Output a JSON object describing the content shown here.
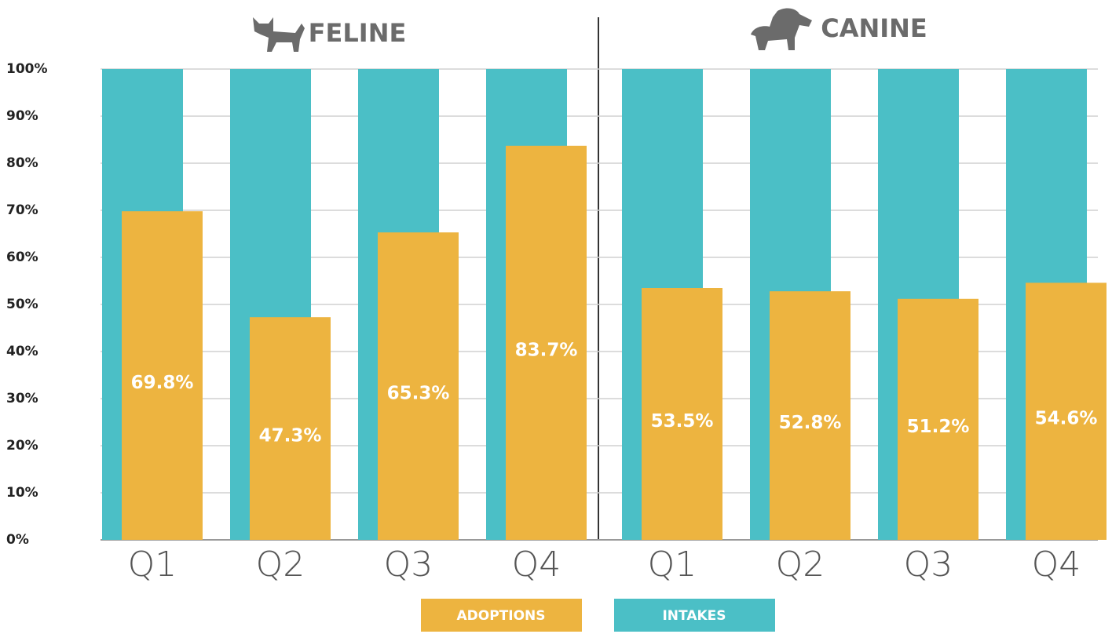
{
  "chart_data": {
    "type": "bar",
    "groups": [
      "FELINE",
      "CANINE"
    ],
    "categories": [
      "Q1",
      "Q2",
      "Q3",
      "Q4",
      "Q1",
      "Q2",
      "Q3",
      "Q4"
    ],
    "series": [
      {
        "name": "INTAKES",
        "color": "#4bbfc6",
        "values": [
          100,
          100,
          100,
          100,
          100,
          100,
          100,
          100
        ]
      },
      {
        "name": "ADOPTIONS",
        "color": "#edb440",
        "values": [
          69.8,
          47.3,
          65.3,
          83.7,
          53.5,
          52.8,
          51.2,
          54.6
        ],
        "value_labels": [
          "69.8%",
          "47.3%",
          "65.3%",
          "83.7%",
          "53.5%",
          "52.8%",
          "51.2%",
          "54.6%"
        ]
      }
    ],
    "ylim": [
      0,
      100
    ],
    "yticks": [
      {
        "value": 0,
        "label": "0%"
      },
      {
        "value": 10,
        "label": "10%"
      },
      {
        "value": 20,
        "label": "20%"
      },
      {
        "value": 30,
        "label": "30%"
      },
      {
        "value": 40,
        "label": "40%"
      },
      {
        "value": 50,
        "label": "50%"
      },
      {
        "value": 60,
        "label": "60%"
      },
      {
        "value": 70,
        "label": "70%"
      },
      {
        "value": 80,
        "label": "80%"
      },
      {
        "value": 90,
        "label": "90%"
      },
      {
        "value": 100,
        "label": "100%"
      }
    ],
    "grid": true
  }
}
